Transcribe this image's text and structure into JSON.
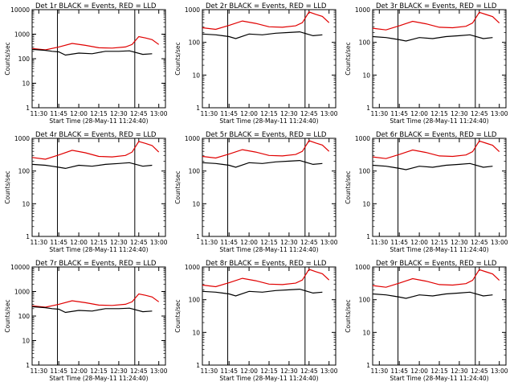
{
  "chart_data": [
    {
      "title": "Det 1r BLACK = Events, RED = LLD",
      "xlabel": "Start Time (28-May-11 11:24:40)",
      "ylabel": "Counts/sec",
      "type": "line",
      "yscale": "log",
      "ylim": [
        1,
        10000
      ],
      "ytick_labels": [
        "1",
        "10",
        "100",
        "1000",
        "10000"
      ],
      "xtick_labels": [
        "11:30",
        "11:45",
        "12:00",
        "12:15",
        "12:30",
        "12:45",
        "13:00"
      ],
      "series": [
        {
          "name": "LLD",
          "color": "#e00000",
          "x": [
            "11:25",
            "11:35",
            "11:45",
            "11:55",
            "12:05",
            "12:15",
            "12:25",
            "12:35",
            "12:40",
            "12:45",
            "12:50",
            "12:55",
            "13:00"
          ],
          "y": [
            260,
            230,
            300,
            420,
            350,
            280,
            270,
            300,
            380,
            800,
            700,
            600,
            380
          ]
        },
        {
          "name": "Events",
          "color": "#000000",
          "x": [
            "11:25",
            "11:35",
            "11:40",
            "11:45",
            "11:50",
            "12:00",
            "12:10",
            "12:20",
            "12:30",
            "12:38",
            "12:48",
            "12:55"
          ],
          "y": [
            240,
            220,
            200,
            190,
            140,
            170,
            160,
            200,
            200,
            210,
            150,
            160
          ]
        }
      ],
      "vlines": [
        "11:44",
        "12:42"
      ]
    },
    {
      "title": "Det 2r BLACK = Events, RED = LLD",
      "xlabel": "Start Time (28-May-11 11:24:40)",
      "ylabel": "Counts/sec",
      "type": "line",
      "yscale": "log",
      "ylim": [
        1,
        1000
      ],
      "ytick_labels": [
        "1",
        "10",
        "100",
        "1000"
      ],
      "xtick_labels": [
        "11:30",
        "11:45",
        "12:00",
        "12:15",
        "12:30",
        "12:45",
        "13:00"
      ],
      "series": [
        {
          "name": "LLD",
          "color": "#e00000",
          "x": [
            "11:25",
            "11:35",
            "11:45",
            "11:55",
            "12:05",
            "12:15",
            "12:25",
            "12:35",
            "12:40",
            "12:45",
            "12:50",
            "12:55",
            "13:00"
          ],
          "y": [
            280,
            250,
            330,
            450,
            380,
            300,
            290,
            320,
            400,
            850,
            720,
            620,
            400
          ]
        },
        {
          "name": "Events",
          "color": "#000000",
          "x": [
            "11:25",
            "11:35",
            "11:40",
            "11:45",
            "11:50",
            "12:00",
            "12:10",
            "12:20",
            "12:30",
            "12:38",
            "12:48",
            "12:55"
          ],
          "y": [
            180,
            170,
            160,
            150,
            130,
            180,
            170,
            190,
            200,
            210,
            160,
            170
          ]
        }
      ],
      "vlines": [
        "11:44",
        "12:42"
      ]
    },
    {
      "title": "Det 3r BLACK = Events, RED = LLD",
      "xlabel": "Start Time (28-May-11 11:24:40)",
      "ylabel": "Counts/sec",
      "type": "line",
      "yscale": "log",
      "ylim": [
        1,
        1000
      ],
      "ytick_labels": [
        "1",
        "10",
        "100",
        "1000"
      ],
      "xtick_labels": [
        "11:30",
        "11:45",
        "12:00",
        "12:15",
        "12:30",
        "12:45",
        "13:00"
      ],
      "series": [
        {
          "name": "LLD",
          "color": "#e00000",
          "x": [
            "11:25",
            "11:35",
            "11:45",
            "11:55",
            "12:05",
            "12:15",
            "12:25",
            "12:35",
            "12:40",
            "12:45",
            "12:50",
            "12:55",
            "13:00"
          ],
          "y": [
            270,
            240,
            320,
            440,
            370,
            290,
            280,
            310,
            390,
            830,
            710,
            610,
            390
          ]
        },
        {
          "name": "Events",
          "color": "#000000",
          "x": [
            "11:25",
            "11:35",
            "11:40",
            "11:45",
            "11:50",
            "12:00",
            "12:10",
            "12:20",
            "12:30",
            "12:38",
            "12:48",
            "12:55"
          ],
          "y": [
            150,
            140,
            130,
            120,
            110,
            140,
            130,
            150,
            160,
            170,
            130,
            140
          ]
        }
      ],
      "vlines": [
        "11:44",
        "12:42"
      ]
    },
    {
      "title": "Det 4r BLACK = Events, RED = LLD",
      "xlabel": "Start Time (28-May-11 11:24:40)",
      "ylabel": "Counts/sec",
      "type": "line",
      "yscale": "log",
      "ylim": [
        1,
        1000
      ],
      "ytick_labels": [
        "1",
        "10",
        "100",
        "1000"
      ],
      "xtick_labels": [
        "11:30",
        "11:45",
        "12:00",
        "12:15",
        "12:30",
        "12:45",
        "13:00"
      ],
      "series": [
        {
          "name": "LLD",
          "color": "#e00000",
          "x": [
            "11:25",
            "11:35",
            "11:45",
            "11:55",
            "12:05",
            "12:15",
            "12:25",
            "12:35",
            "12:40",
            "12:45",
            "12:50",
            "12:55",
            "13:00"
          ],
          "y": [
            260,
            230,
            310,
            430,
            360,
            280,
            270,
            300,
            380,
            800,
            700,
            600,
            380
          ]
        },
        {
          "name": "Events",
          "color": "#000000",
          "x": [
            "11:25",
            "11:35",
            "11:40",
            "11:45",
            "11:50",
            "12:00",
            "12:10",
            "12:20",
            "12:30",
            "12:38",
            "12:48",
            "12:55"
          ],
          "y": [
            160,
            150,
            140,
            130,
            120,
            150,
            140,
            160,
            170,
            180,
            140,
            150
          ]
        }
      ],
      "vlines": [
        "11:44",
        "12:42"
      ]
    },
    {
      "title": "Det 5r BLACK = Events, RED = LLD",
      "xlabel": "Start Time (28-May-11 11:24:40)",
      "ylabel": "Counts/sec",
      "type": "line",
      "yscale": "log",
      "ylim": [
        1,
        1000
      ],
      "ytick_labels": [
        "1",
        "10",
        "100",
        "1000"
      ],
      "xtick_labels": [
        "11:30",
        "11:45",
        "12:00",
        "12:15",
        "12:30",
        "12:45",
        "13:00"
      ],
      "series": [
        {
          "name": "LLD",
          "color": "#e00000",
          "x": [
            "11:25",
            "11:35",
            "11:45",
            "11:55",
            "12:05",
            "12:15",
            "12:25",
            "12:35",
            "12:40",
            "12:45",
            "12:50",
            "12:55",
            "13:00"
          ],
          "y": [
            280,
            250,
            330,
            450,
            380,
            300,
            290,
            320,
            400,
            850,
            720,
            620,
            400
          ]
        },
        {
          "name": "Events",
          "color": "#000000",
          "x": [
            "11:25",
            "11:35",
            "11:40",
            "11:45",
            "11:50",
            "12:00",
            "12:10",
            "12:20",
            "12:30",
            "12:38",
            "12:48",
            "12:55"
          ],
          "y": [
            180,
            170,
            160,
            150,
            130,
            180,
            170,
            190,
            200,
            210,
            160,
            170
          ]
        }
      ],
      "vlines": [
        "11:44",
        "12:42"
      ]
    },
    {
      "title": "Det 6r BLACK = Events, RED = LLD",
      "xlabel": "Start Time (28-May-11 11:24:40)",
      "ylabel": "Counts/sec",
      "type": "line",
      "yscale": "log",
      "ylim": [
        1,
        1000
      ],
      "ytick_labels": [
        "1",
        "10",
        "100",
        "1000"
      ],
      "xtick_labels": [
        "11:30",
        "11:45",
        "12:00",
        "12:15",
        "12:30",
        "12:45",
        "13:00"
      ],
      "series": [
        {
          "name": "LLD",
          "color": "#e00000",
          "x": [
            "11:25",
            "11:35",
            "11:45",
            "11:55",
            "12:05",
            "12:15",
            "12:25",
            "12:35",
            "12:40",
            "12:45",
            "12:50",
            "12:55",
            "13:00"
          ],
          "y": [
            270,
            240,
            320,
            440,
            370,
            290,
            280,
            310,
            390,
            830,
            710,
            610,
            390
          ]
        },
        {
          "name": "Events",
          "color": "#000000",
          "x": [
            "11:25",
            "11:35",
            "11:40",
            "11:45",
            "11:50",
            "12:00",
            "12:10",
            "12:20",
            "12:30",
            "12:38",
            "12:48",
            "12:55"
          ],
          "y": [
            150,
            140,
            130,
            120,
            110,
            140,
            130,
            150,
            160,
            170,
            130,
            140
          ]
        }
      ],
      "vlines": [
        "11:44",
        "12:42"
      ]
    },
    {
      "title": "Det 7r BLACK = Events, RED = LLD",
      "xlabel": "Start Time (28-May-11 11:24:40)",
      "ylabel": "Counts/sec",
      "type": "line",
      "yscale": "log",
      "ylim": [
        1,
        10000
      ],
      "ytick_labels": [
        "1",
        "10",
        "100",
        "1000",
        "10000"
      ],
      "xtick_labels": [
        "11:30",
        "11:45",
        "12:00",
        "12:15",
        "12:30",
        "12:45",
        "13:00"
      ],
      "series": [
        {
          "name": "LLD",
          "color": "#e00000",
          "x": [
            "11:25",
            "11:35",
            "11:45",
            "11:55",
            "12:05",
            "12:15",
            "12:25",
            "12:35",
            "12:40",
            "12:45",
            "12:50",
            "12:55",
            "13:00"
          ],
          "y": [
            260,
            230,
            300,
            420,
            350,
            280,
            270,
            300,
            380,
            800,
            700,
            600,
            380
          ]
        },
        {
          "name": "Events",
          "color": "#000000",
          "x": [
            "11:25",
            "11:35",
            "11:40",
            "11:45",
            "11:50",
            "12:00",
            "12:10",
            "12:20",
            "12:30",
            "12:38",
            "12:48",
            "12:55"
          ],
          "y": [
            240,
            220,
            200,
            190,
            140,
            170,
            160,
            200,
            200,
            210,
            150,
            160
          ]
        }
      ],
      "vlines": [
        "11:44",
        "12:42"
      ]
    },
    {
      "title": "Det 8r BLACK = Events, RED = LLD",
      "xlabel": "Start Time (28-May-11 11:24:40)",
      "ylabel": "Counts/sec",
      "type": "line",
      "yscale": "log",
      "ylim": [
        1,
        1000
      ],
      "ytick_labels": [
        "1",
        "10",
        "100",
        "1000"
      ],
      "xtick_labels": [
        "11:30",
        "11:45",
        "12:00",
        "12:15",
        "12:30",
        "12:45",
        "13:00"
      ],
      "series": [
        {
          "name": "LLD",
          "color": "#e00000",
          "x": [
            "11:25",
            "11:35",
            "11:45",
            "11:55",
            "12:05",
            "12:15",
            "12:25",
            "12:35",
            "12:40",
            "12:45",
            "12:50",
            "12:55",
            "13:00"
          ],
          "y": [
            280,
            250,
            330,
            450,
            380,
            300,
            290,
            320,
            400,
            850,
            720,
            620,
            400
          ]
        },
        {
          "name": "Events",
          "color": "#000000",
          "x": [
            "11:25",
            "11:35",
            "11:40",
            "11:45",
            "11:50",
            "12:00",
            "12:10",
            "12:20",
            "12:30",
            "12:38",
            "12:48",
            "12:55"
          ],
          "y": [
            180,
            170,
            160,
            150,
            130,
            180,
            170,
            190,
            200,
            210,
            160,
            170
          ]
        }
      ],
      "vlines": [
        "11:44",
        "12:42"
      ]
    },
    {
      "title": "Det 9r BLACK = Events, RED = LLD",
      "xlabel": "Start Time (28-May-11 11:24:40)",
      "ylabel": "Counts/sec",
      "type": "line",
      "yscale": "log",
      "ylim": [
        1,
        1000
      ],
      "ytick_labels": [
        "1",
        "10",
        "100",
        "1000"
      ],
      "xtick_labels": [
        "11:30",
        "11:45",
        "12:00",
        "12:15",
        "12:30",
        "12:45",
        "13:00"
      ],
      "series": [
        {
          "name": "LLD",
          "color": "#e00000",
          "x": [
            "11:25",
            "11:35",
            "11:45",
            "11:55",
            "12:05",
            "12:15",
            "12:25",
            "12:35",
            "12:40",
            "12:45",
            "12:50",
            "12:55",
            "13:00"
          ],
          "y": [
            270,
            240,
            320,
            440,
            370,
            290,
            280,
            310,
            390,
            830,
            710,
            610,
            390
          ]
        },
        {
          "name": "Events",
          "color": "#000000",
          "x": [
            "11:25",
            "11:35",
            "11:40",
            "11:45",
            "11:50",
            "12:00",
            "12:10",
            "12:20",
            "12:30",
            "12:38",
            "12:48",
            "12:55"
          ],
          "y": [
            150,
            140,
            130,
            120,
            110,
            140,
            130,
            150,
            160,
            170,
            130,
            140
          ]
        }
      ],
      "vlines": [
        "11:44",
        "12:42"
      ]
    }
  ]
}
